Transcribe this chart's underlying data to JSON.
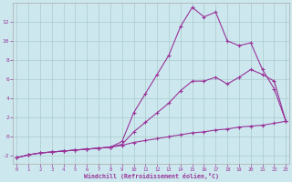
{
  "xlabel": "Windchill (Refroidissement éolien,°C)",
  "bg_color": "#cce8ee",
  "grid_color": "#aacccc",
  "line_color": "#993399",
  "x": [
    0,
    1,
    2,
    3,
    4,
    5,
    6,
    7,
    8,
    9,
    10,
    11,
    12,
    13,
    14,
    15,
    16,
    17,
    18,
    19,
    20,
    21,
    22,
    23
  ],
  "series_top": [
    -2.2,
    -1.9,
    -1.7,
    -1.6,
    -1.5,
    -1.4,
    -1.3,
    -1.2,
    -1.1,
    -0.5,
    2.5,
    4.5,
    6.5,
    8.5,
    11.5,
    13.5,
    12.5,
    13.0,
    10.0,
    9.5,
    9.8,
    7.0,
    5.0,
    1.6
  ],
  "series_mid": [
    -2.2,
    -1.9,
    -1.7,
    -1.6,
    -1.5,
    -1.4,
    -1.3,
    -1.2,
    -1.1,
    -0.8,
    0.5,
    1.5,
    2.5,
    3.5,
    4.8,
    5.8,
    5.8,
    6.2,
    5.5,
    6.2,
    7.0,
    6.5,
    5.8,
    1.6
  ],
  "series_bot": [
    -2.2,
    -1.9,
    -1.7,
    -1.6,
    -1.5,
    -1.4,
    -1.3,
    -1.2,
    -1.1,
    -0.9,
    -0.6,
    -0.4,
    -0.2,
    0.0,
    0.2,
    0.4,
    0.5,
    0.7,
    0.8,
    1.0,
    1.1,
    1.2,
    1.4,
    1.6
  ],
  "ylim": [
    -2.8,
    14.0
  ],
  "xlim": [
    -0.3,
    23.3
  ],
  "yticks": [
    -2,
    0,
    2,
    4,
    6,
    8,
    10,
    12
  ],
  "xticks": [
    0,
    1,
    2,
    3,
    4,
    5,
    6,
    7,
    8,
    9,
    10,
    11,
    12,
    13,
    14,
    15,
    16,
    17,
    18,
    19,
    20,
    21,
    22,
    23
  ]
}
